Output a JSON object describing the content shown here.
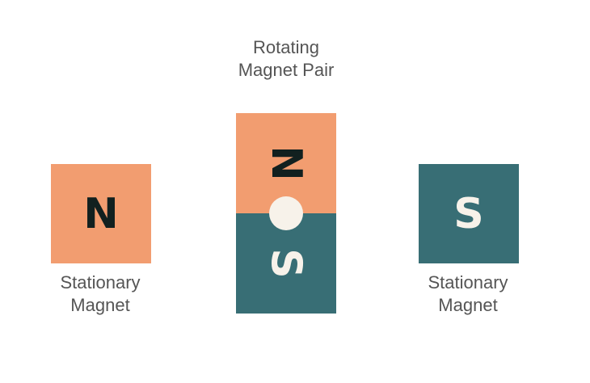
{
  "colors": {
    "north": "#F29D70",
    "south": "#386E75",
    "dark_text": "#12201F",
    "light_text": "#F7F2EA",
    "pivot": "#F7F2EA"
  },
  "rotating_pair": {
    "caption_line1": "Rotating",
    "caption_line2": "Magnet Pair",
    "top_pole": "N",
    "bottom_pole": "S"
  },
  "left_magnet": {
    "pole": "N",
    "caption_line1": "Stationary",
    "caption_line2": "Magnet"
  },
  "right_magnet": {
    "pole": "S",
    "caption_line1": "Stationary",
    "caption_line2": "Magnet"
  }
}
